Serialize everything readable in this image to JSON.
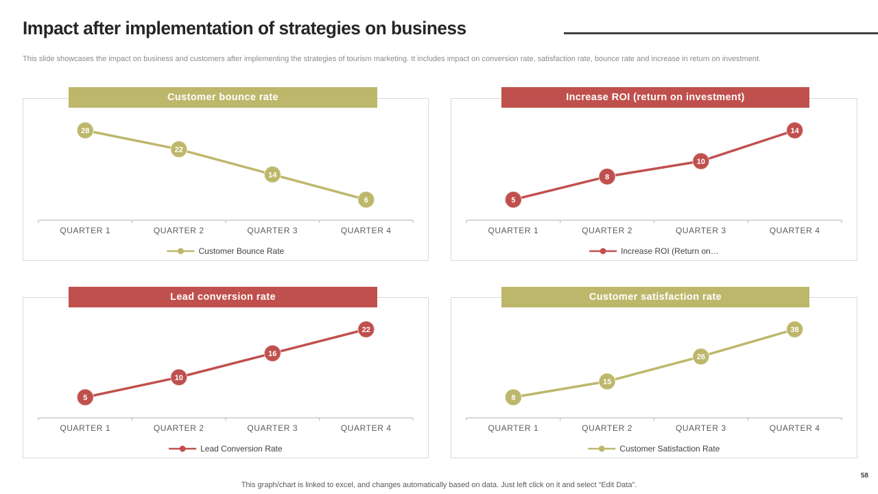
{
  "slide": {
    "title": "Impact after implementation of strategies on business",
    "subtitle": "This slide showcases the impact on business and customers after implementing the strategies of tourism marketing. It includes impact on conversion rate, satisfaction rate, bounce rate and increase in return on investment.",
    "footer": "This graph/chart is linked to excel, and changes automatically based on data. Just left click on it and select “Edit Data”.",
    "page_number": "58"
  },
  "colors": {
    "olive": "#BDB76B",
    "red": "#C0504D",
    "axis": "#BFBFBF",
    "tick_label": "#595959",
    "legend_text": "#3F3F3F"
  },
  "chart_data": [
    {
      "type": "line",
      "title": "Customer bounce rate",
      "color": "#BDB76B",
      "categories": [
        "QUARTER 1",
        "QUARTER 2",
        "QUARTER 3",
        "QUARTER 4"
      ],
      "series": [
        {
          "name": "Customer Bounce Rate",
          "values": [
            28,
            22,
            14,
            6
          ]
        }
      ],
      "legend_label": "Customer Bounce Rate",
      "legend_position": "bottom",
      "data_labels": true,
      "grid": false
    },
    {
      "type": "line",
      "title": "Increase ROI (return on investment)",
      "color": "#C0504D",
      "categories": [
        "QUARTER 1",
        "QUARTER 2",
        "QUARTER 3",
        "QUARTER 4"
      ],
      "series": [
        {
          "name": "Increase ROI (Return on Investment)",
          "values": [
            5,
            8,
            10,
            14
          ]
        }
      ],
      "legend_label": "Increase ROI (Return on…",
      "legend_position": "bottom",
      "data_labels": true,
      "grid": false
    },
    {
      "type": "line",
      "title": "Lead conversion rate",
      "color": "#C0504D",
      "categories": [
        "QUARTER 1",
        "QUARTER 2",
        "QUARTER 3",
        "QUARTER 4"
      ],
      "series": [
        {
          "name": "Lead Conversion Rate",
          "values": [
            5,
            10,
            16,
            22
          ]
        }
      ],
      "legend_label": "Lead Conversion Rate",
      "legend_position": "bottom",
      "data_labels": true,
      "grid": false
    },
    {
      "type": "line",
      "title": "Customer satisfaction rate",
      "color": "#BDB76B",
      "categories": [
        "QUARTER 1",
        "QUARTER 2",
        "QUARTER 3",
        "QUARTER 4"
      ],
      "series": [
        {
          "name": "Customer Satisfaction Rate",
          "values": [
            8,
            15,
            26,
            38
          ]
        }
      ],
      "legend_label": "Customer Satisfaction Rate",
      "legend_position": "bottom",
      "data_labels": true,
      "grid": false
    }
  ]
}
